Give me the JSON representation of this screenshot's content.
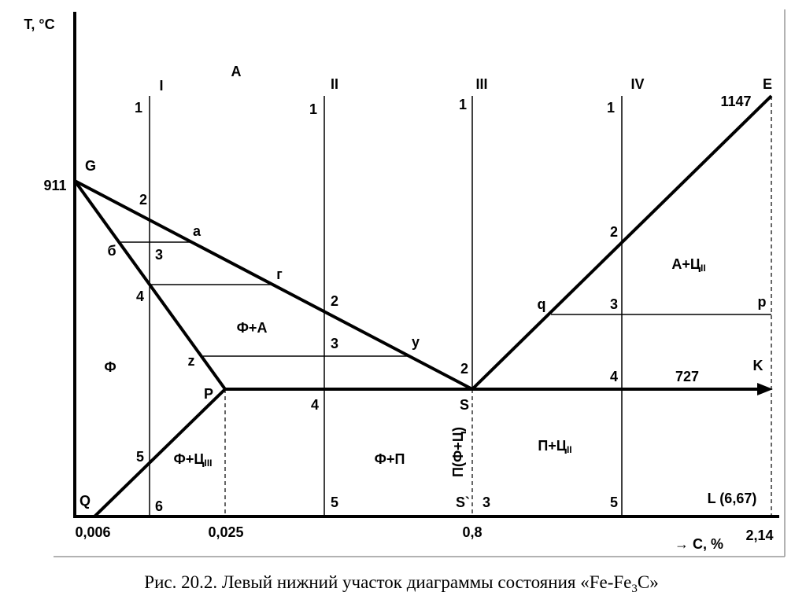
{
  "labels": [
    "T, °C",
    "A",
    "I",
    "II",
    "III",
    "IV",
    "E",
    "1",
    "1",
    "1",
    "1",
    "1147",
    "G",
    "911",
    "2",
    "a",
    "б",
    "3",
    "г",
    "4",
    "2",
    "2",
    "q",
    "3",
    "p",
    "Ф+А",
    "3",
    "y",
    "Ф",
    "z",
    "2",
    "4",
    "727",
    "K",
    "P",
    "4",
    "S",
    "5",
    "Ф+П",
    "П(Ф+Ц)",
    "Q",
    "6",
    "5",
    "S`",
    "3",
    "5",
    "L (6,67)",
    "0,006",
    "0,025",
    "0,8",
    "2,14",
    "→ C, %"
  ],
  "regions": [
    {
      "main": "А+Ц",
      "sub": "II"
    },
    {
      "main": "Ф+Ц",
      "sub": "III"
    },
    {
      "main": "П+Ц",
      "sub": "II"
    }
  ],
  "caption": {
    "before": "Рис. 20.2. Левый нижний участок диаграммы состояния «Fe-Fe",
    "sub": "3",
    "after": "C»"
  }
}
